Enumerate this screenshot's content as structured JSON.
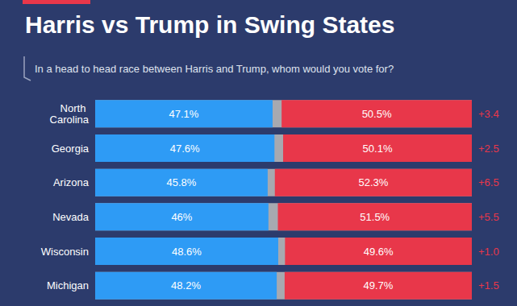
{
  "chart_data": {
    "type": "bar",
    "title": "Harris vs Trump in Swing States",
    "subtitle": "In a head to head race between Harris and Trump, whom would you vote for?",
    "categories": [
      "North Carolina",
      "Georgia",
      "Arizona",
      "Nevada",
      "Wisconsin",
      "Michigan"
    ],
    "series": [
      {
        "name": "Harris",
        "color": "#2e9bf5",
        "values": [
          47.1,
          47.6,
          45.8,
          46,
          48.6,
          48.2
        ],
        "value_labels": [
          "47.1%",
          "47.6%",
          "45.8%",
          "46%",
          "48.6%",
          "48.2%"
        ]
      },
      {
        "name": "Trump",
        "color": "#e8374a",
        "values": [
          50.5,
          50.1,
          52.3,
          51.5,
          49.6,
          49.7
        ],
        "value_labels": [
          "50.5%",
          "50.1%",
          "52.3%",
          "51.5%",
          "49.6%",
          "49.7%"
        ]
      }
    ],
    "margin_labels": [
      "+3.4",
      "+2.5",
      "+6.5",
      "+5.5",
      "+1.0",
      "+1.5"
    ],
    "xlim": [
      0,
      100
    ],
    "orientation": "horizontal",
    "data_labels": true,
    "tick_labels": "y",
    "grid": false
  }
}
